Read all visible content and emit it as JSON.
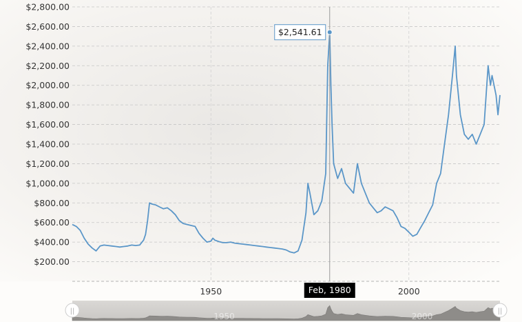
{
  "chart_data": {
    "type": "line",
    "xlabel": "",
    "ylabel": "",
    "xlim": [
      1915,
      2023
    ],
    "ylim": [
      0,
      2800
    ],
    "x_ticks": [
      1950,
      2000
    ],
    "y_ticks": [
      200,
      400,
      600,
      800,
      1000,
      1200,
      1400,
      1600,
      1800,
      2000,
      2200,
      2400,
      2600,
      2800
    ],
    "y_tick_labels": [
      "$200.00",
      "$400.00",
      "$600.00",
      "$800.00",
      "$1,000.00",
      "$1,200.00",
      "$1,400.00",
      "$1,600.00",
      "$1,800.00",
      "$2,000.00",
      "$2,200.00",
      "$2,400.00",
      "$2,600.00",
      "$2,800.00"
    ],
    "x_tick_labels": [
      "1950",
      "2000"
    ],
    "grid": true,
    "line_color": "#5a96c8",
    "series": [
      {
        "x": [
          1915,
          1916,
          1917,
          1918,
          1919,
          1920,
          1921,
          1922,
          1923,
          1924,
          1925,
          1926,
          1927,
          1928,
          1929,
          1930,
          1931,
          1932,
          1933,
          1933.5,
          1934,
          1934.5,
          1935,
          1936,
          1937,
          1938,
          1939,
          1940,
          1941,
          1942,
          1943,
          1944,
          1945,
          1946,
          1947,
          1948,
          1949,
          1950,
          1950.5,
          1951,
          1952,
          1953,
          1954,
          1955,
          1956,
          1957,
          1958,
          1959,
          1960,
          1961,
          1962,
          1963,
          1964,
          1965,
          1966,
          1967,
          1968,
          1969,
          1970,
          1971,
          1972,
          1973,
          1974,
          1974.5,
          1975,
          1976,
          1977,
          1978,
          1979,
          1979.5,
          1980,
          1980.3,
          1980.6,
          1981,
          1982,
          1983,
          1984,
          1985,
          1986,
          1987,
          1988,
          1989,
          1990,
          1991,
          1992,
          1993,
          1994,
          1995,
          1996,
          1997,
          1998,
          1999,
          2000,
          2001,
          2002,
          2003,
          2004,
          2005,
          2006,
          2007,
          2008,
          2009,
          2010,
          2011,
          2011.7,
          2012,
          2013,
          2014,
          2015,
          2016,
          2017,
          2018,
          2019,
          2020,
          2020.6,
          2021,
          2022,
          2022.5,
          2023
        ],
        "y": [
          580,
          560,
          520,
          440,
          380,
          340,
          310,
          360,
          370,
          365,
          360,
          355,
          350,
          355,
          360,
          370,
          365,
          370,
          420,
          480,
          620,
          800,
          790,
          780,
          760,
          740,
          750,
          720,
          680,
          620,
          590,
          580,
          570,
          560,
          490,
          440,
          400,
          410,
          440,
          420,
          405,
          395,
          395,
          400,
          390,
          385,
          380,
          375,
          370,
          365,
          360,
          355,
          350,
          345,
          340,
          335,
          330,
          320,
          300,
          290,
          310,
          420,
          700,
          1000,
          900,
          680,
          720,
          820,
          1100,
          2200,
          2541.61,
          2000,
          1600,
          1200,
          1050,
          1150,
          1000,
          950,
          900,
          1200,
          1000,
          900,
          800,
          750,
          700,
          720,
          760,
          740,
          720,
          650,
          560,
          540,
          500,
          460,
          480,
          550,
          620,
          700,
          780,
          1000,
          1100,
          1400,
          1700,
          2100,
          2400,
          2100,
          1700,
          1500,
          1450,
          1500,
          1400,
          1500,
          1600,
          2200,
          2000,
          2100,
          1900,
          1700,
          1900
        ],
        "name": ""
      }
    ],
    "hover": {
      "x": 1980,
      "y": 2541.61,
      "tooltip": "$2,541.61",
      "x_badge": "Feb, 1980"
    },
    "navigator": {
      "x_tick_labels": [
        "1950",
        "2000"
      ],
      "x_ticks": [
        1950,
        2000
      ],
      "left_handle_glyph": "||",
      "right_handle_glyph": "||"
    }
  }
}
